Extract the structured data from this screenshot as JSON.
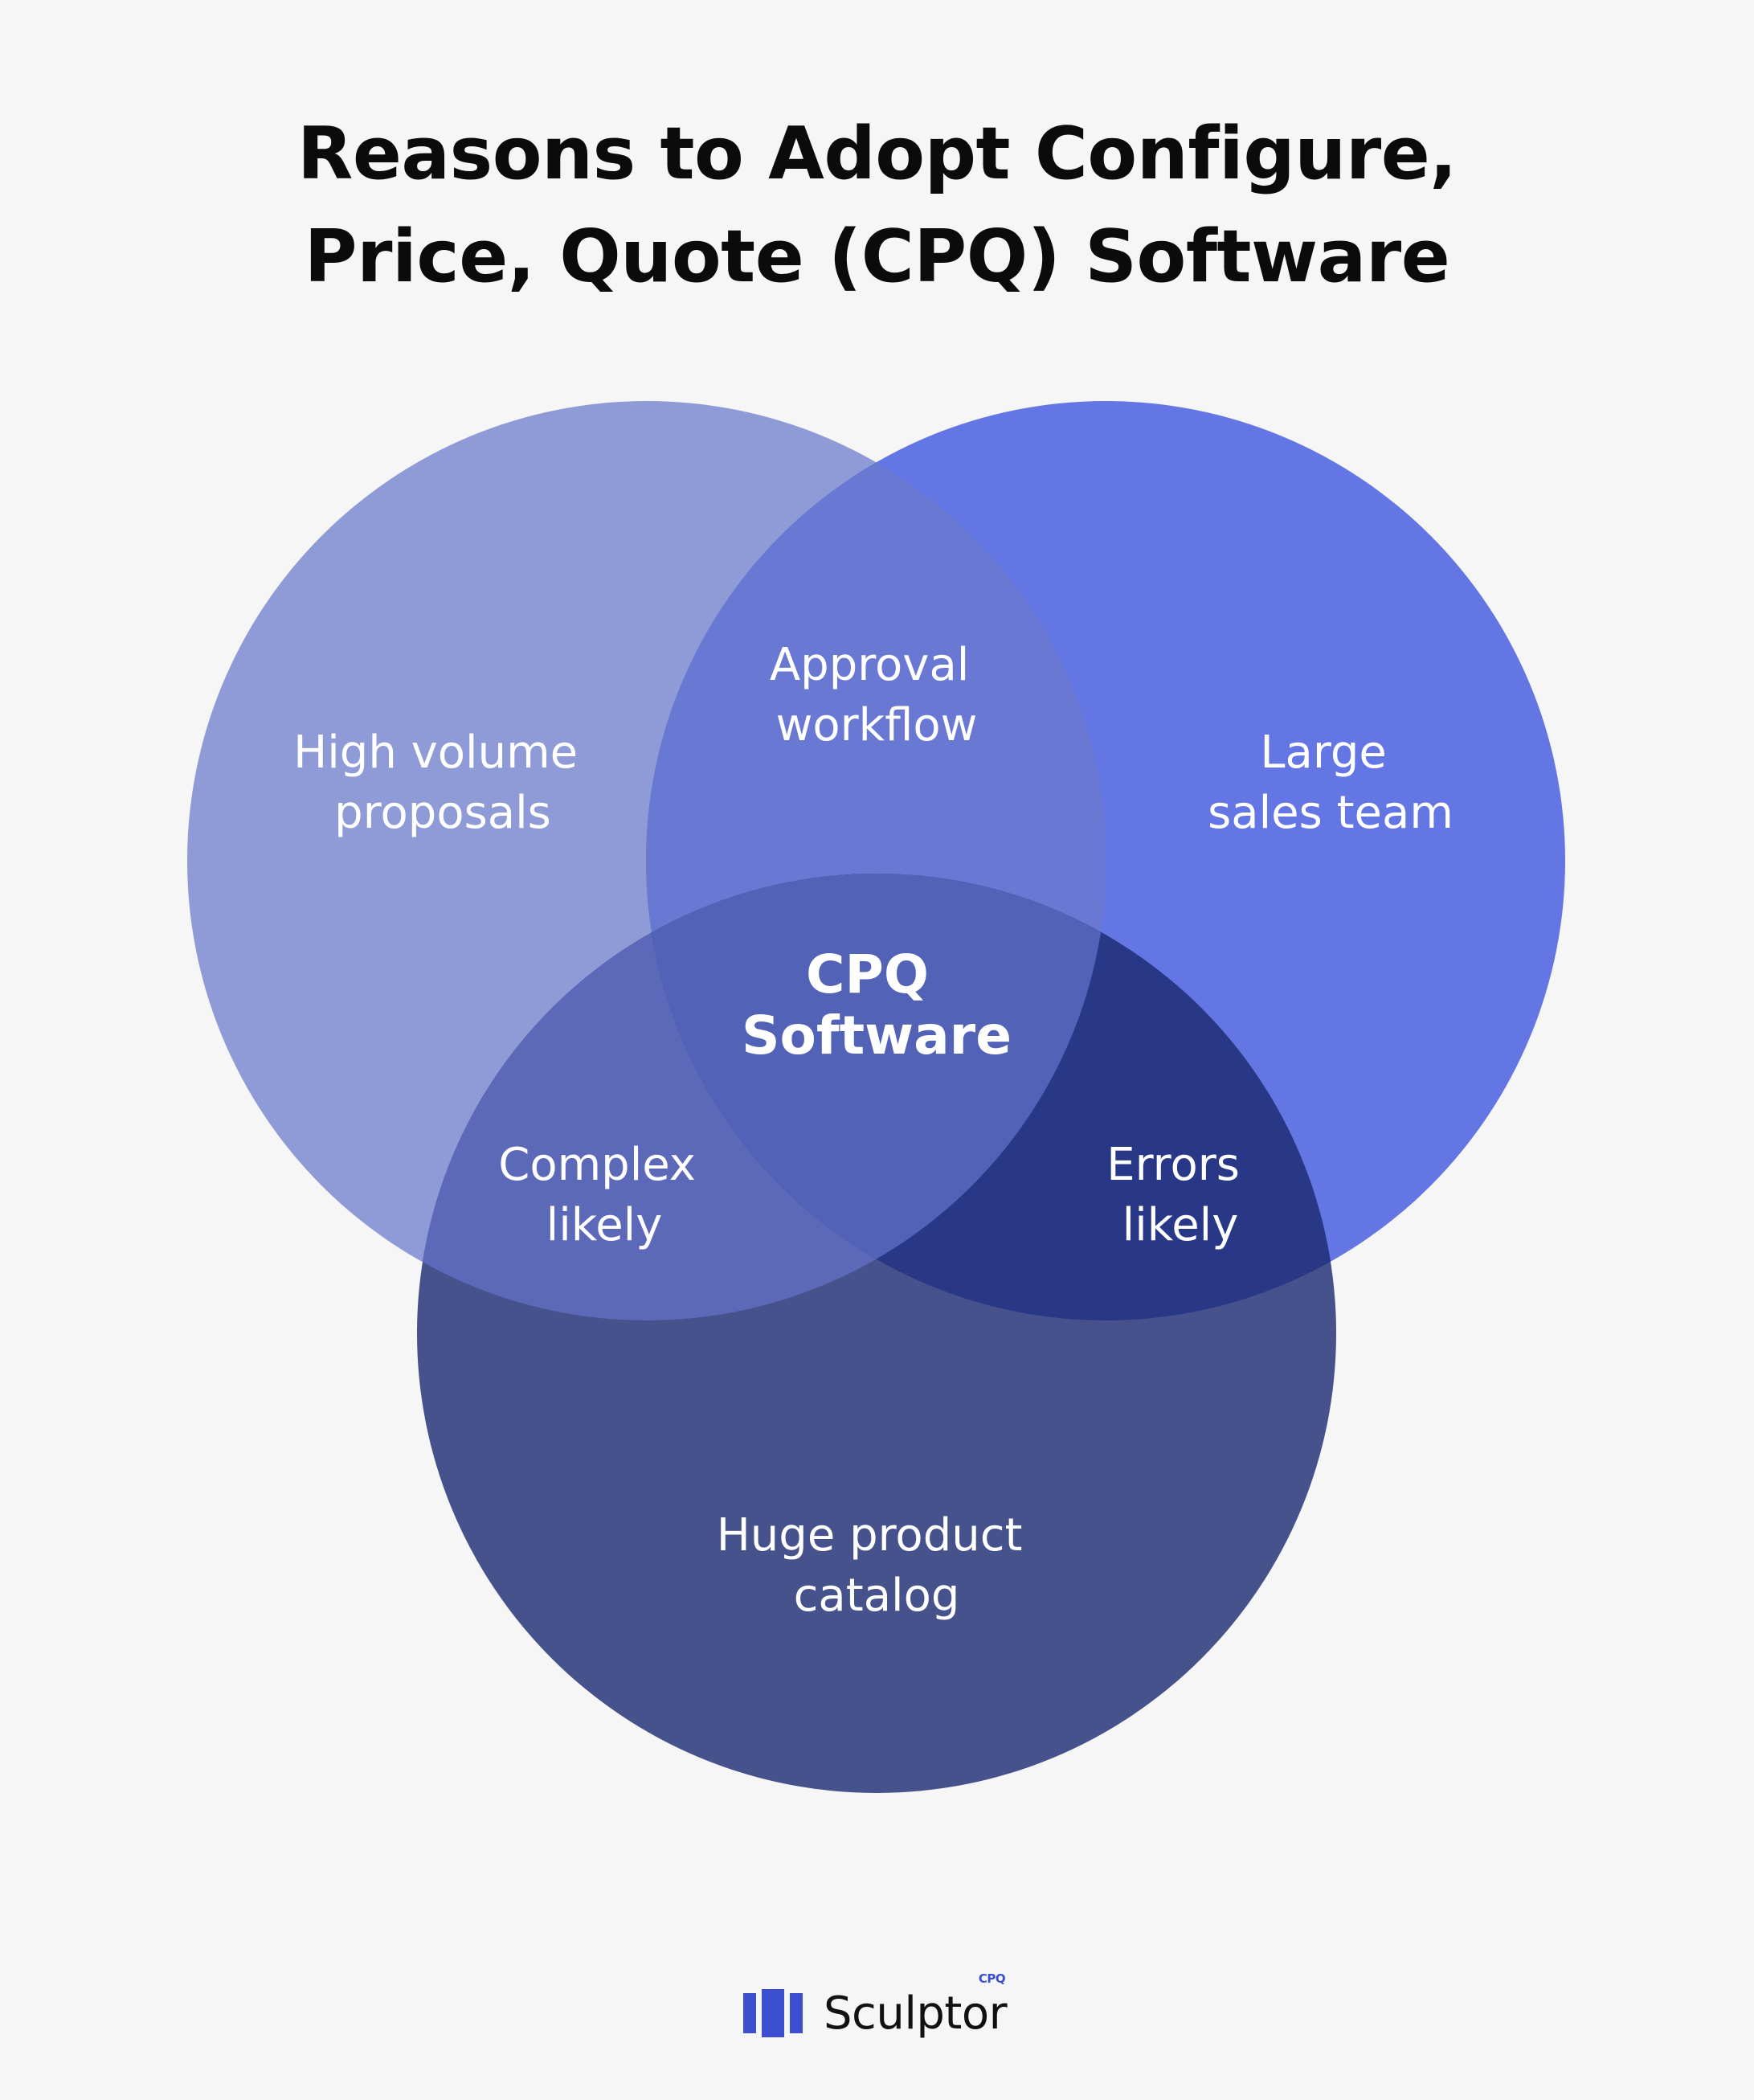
{
  "title": {
    "line1": "Reasons to Adopt Configure,",
    "line2": "Price, Quote (CPQ) Software"
  },
  "venn": {
    "sets": [
      {
        "label_line1": "High volume",
        "label_line2": "proposals",
        "color": "#8f9bd6"
      },
      {
        "label_line1": "Large",
        "label_line2": "sales team",
        "color": "#6376e3"
      },
      {
        "label_line1": "Huge product",
        "label_line2": "catalog",
        "color": "#46528b"
      }
    ],
    "overlaps": {
      "top": {
        "label_line1": "Approval",
        "label_line2": "workflow",
        "color": "#6878d3"
      },
      "left": {
        "label_line1": "Complex",
        "label_line2": "likely",
        "color": "#5b69b8"
      },
      "right": {
        "label_line1": "Errors",
        "label_line2": "likely",
        "color": "#283887"
      },
      "center": {
        "label_line1": "CPQ",
        "label_line2": "Software",
        "color": "#5262b6"
      }
    }
  },
  "logo": {
    "name": "Sculptor",
    "sup": "CPQ",
    "icon": "bars-logo-icon",
    "color": "#3b4fd0"
  }
}
